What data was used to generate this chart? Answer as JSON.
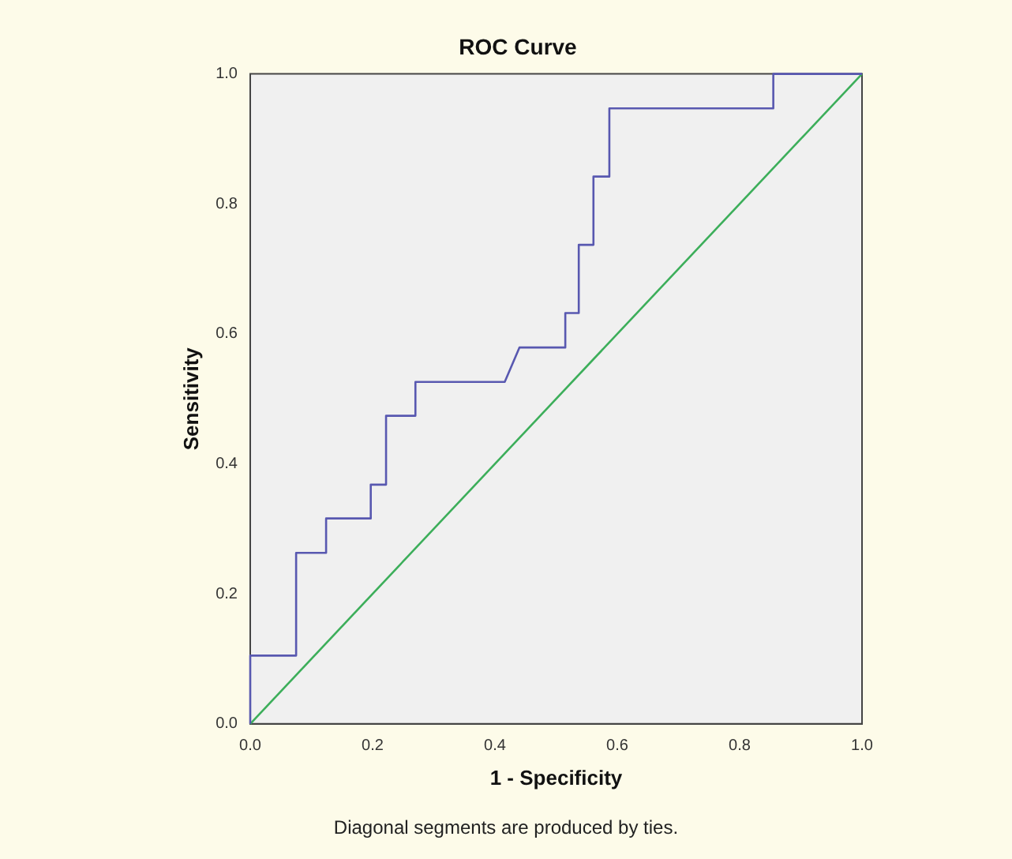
{
  "chart_data": {
    "type": "line",
    "title": "ROC Curve",
    "xlabel": "1 - Specificity",
    "ylabel": "Sensitivity",
    "series": [
      {
        "color": "#5858b0",
        "x": [
          0,
          0,
          0.075,
          0.075,
          0.124,
          0.124,
          0.197,
          0.197,
          0.222,
          0.222,
          0.27,
          0.27,
          0.416,
          0.44,
          0.515,
          0.515,
          0.537,
          0.537,
          0.561,
          0.561,
          0.587,
          0.587,
          0.855,
          0.855,
          1
        ],
        "values": [
          0,
          0.105,
          0.105,
          0.263,
          0.263,
          0.316,
          0.316,
          0.368,
          0.368,
          0.474,
          0.474,
          0.526,
          0.526,
          0.579,
          0.579,
          0.632,
          0.632,
          0.737,
          0.737,
          0.842,
          0.842,
          0.947,
          0.947,
          1,
          1
        ]
      },
      {
        "color": "#3cae5a",
        "x": [
          0,
          1
        ],
        "values": [
          0,
          1
        ]
      }
    ],
    "xlim": [
      0,
      1
    ],
    "ylim": [
      0,
      1
    ],
    "xticks": [
      {
        "value": 0,
        "label": "0.0"
      },
      {
        "value": 0.2,
        "label": "0.2"
      },
      {
        "value": 0.4,
        "label": "0.4"
      },
      {
        "value": 0.6,
        "label": "0.6"
      },
      {
        "value": 0.8,
        "label": "0.8"
      },
      {
        "value": 1,
        "label": "1.0"
      }
    ],
    "yticks": [
      {
        "value": 0,
        "label": "0.0"
      },
      {
        "value": 0.2,
        "label": "0.2"
      },
      {
        "value": 0.4,
        "label": "0.4"
      },
      {
        "value": 0.6,
        "label": "0.6"
      },
      {
        "value": 0.8,
        "label": "0.8"
      },
      {
        "value": 1,
        "label": "1.0"
      }
    ],
    "grid": false,
    "marker": "none",
    "line_style": "solid",
    "annotations": [
      "Diagonal segments are produced by ties."
    ]
  }
}
